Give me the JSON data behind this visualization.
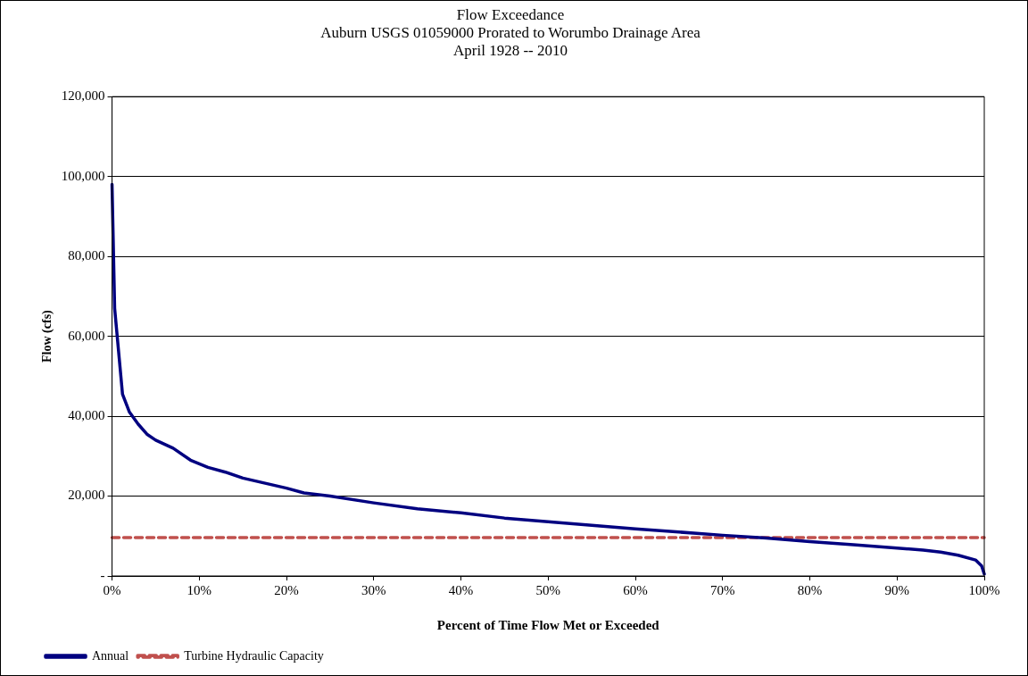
{
  "chart_data": {
    "type": "line",
    "title": "Flow Exceedance",
    "subtitle": "Auburn USGS 01059000 Prorated to Worumbo Drainage Area\nApril 1928 -- 2010",
    "xlabel": "Percent of Time Flow Met or Exceeded",
    "ylabel": "Flow (cfs)",
    "xlim": [
      0,
      100
    ],
    "xticks": [
      {
        "value": 0,
        "label": "0%"
      },
      {
        "value": 10,
        "label": "10%"
      },
      {
        "value": 20,
        "label": "20%"
      },
      {
        "value": 30,
        "label": "30%"
      },
      {
        "value": 40,
        "label": "40%"
      },
      {
        "value": 50,
        "label": "50%"
      },
      {
        "value": 60,
        "label": "60%"
      },
      {
        "value": 70,
        "label": "70%"
      },
      {
        "value": 80,
        "label": "80%"
      },
      {
        "value": 90,
        "label": "90%"
      },
      {
        "value": 100,
        "label": "100%"
      }
    ],
    "ylim": [
      0,
      120000
    ],
    "yticks": [
      {
        "value": 0,
        "label": "-"
      },
      {
        "value": 20000,
        "label": "20,000"
      },
      {
        "value": 40000,
        "label": "40,000"
      },
      {
        "value": 60000,
        "label": "60,000"
      },
      {
        "value": 80000,
        "label": "80,000"
      },
      {
        "value": 100000,
        "label": "100,000"
      },
      {
        "value": 120000,
        "label": "120,000"
      }
    ],
    "grid": "y",
    "legend": "bottom left",
    "marker": "none",
    "series": [
      {
        "name": "Annual",
        "color": "#000080",
        "line_style": "solid",
        "x": [
          0,
          0.3,
          1.2,
          2,
          3,
          4,
          5,
          7,
          9,
          11,
          13,
          15,
          17,
          20,
          22,
          25,
          30,
          35,
          40,
          45,
          50,
          55,
          60,
          65,
          70,
          75,
          80,
          85,
          90,
          93,
          95,
          97,
          99,
          99.7,
          100
        ],
        "values": [
          98000,
          67000,
          45500,
          41000,
          38000,
          35500,
          34000,
          32000,
          29000,
          27200,
          26000,
          24500,
          23500,
          22000,
          20800,
          20000,
          18300,
          16800,
          15800,
          14500,
          13600,
          12700,
          11800,
          11000,
          10200,
          9500,
          8600,
          7800,
          7000,
          6500,
          6000,
          5200,
          4000,
          2500,
          500
        ]
      },
      {
        "name": "Turbine Hydraulic Capacity",
        "color": "#c0504d",
        "line_style": "dashed",
        "x": [
          0,
          100
        ],
        "values": [
          9600,
          9600
        ]
      }
    ]
  }
}
